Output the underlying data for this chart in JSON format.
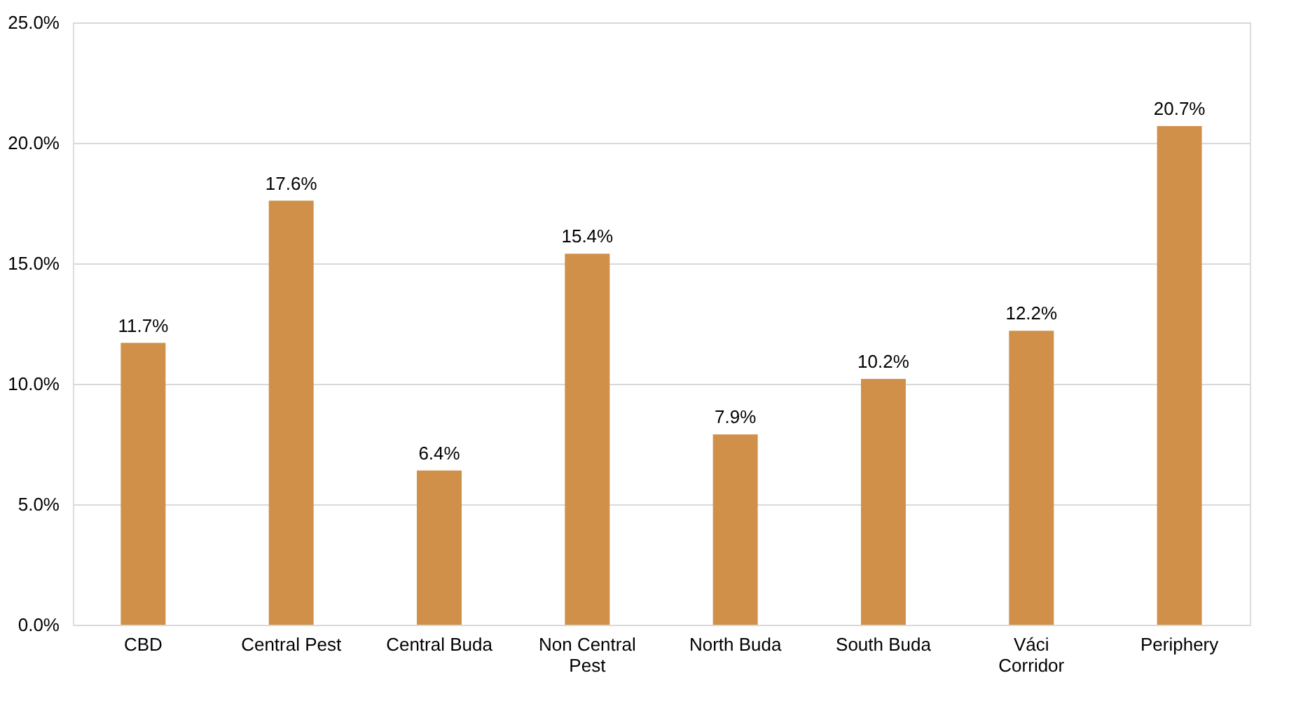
{
  "chart_data": {
    "type": "bar",
    "categories": [
      "CBD",
      "Central Pest",
      "Central Buda",
      "Non Central Pest",
      "North Buda",
      "South Buda",
      "Váci Corridor",
      "Periphery"
    ],
    "values": [
      11.7,
      17.6,
      6.4,
      15.4,
      7.9,
      10.2,
      12.2,
      20.7
    ],
    "value_labels": [
      "11.7%",
      "17.6%",
      "6.4%",
      "15.4%",
      "7.9%",
      "10.2%",
      "12.2%",
      "20.7%"
    ],
    "color": "#d0904a",
    "ylim": [
      0,
      25
    ],
    "yticks": [
      {
        "value": 0,
        "label": "0.0%"
      },
      {
        "value": 5,
        "label": "5.0%"
      },
      {
        "value": 10,
        "label": "10.0%"
      },
      {
        "value": 15,
        "label": "15.0%"
      },
      {
        "value": 20,
        "label": "20.0%"
      },
      {
        "value": 25,
        "label": "25.0%"
      }
    ],
    "grid": "y"
  }
}
